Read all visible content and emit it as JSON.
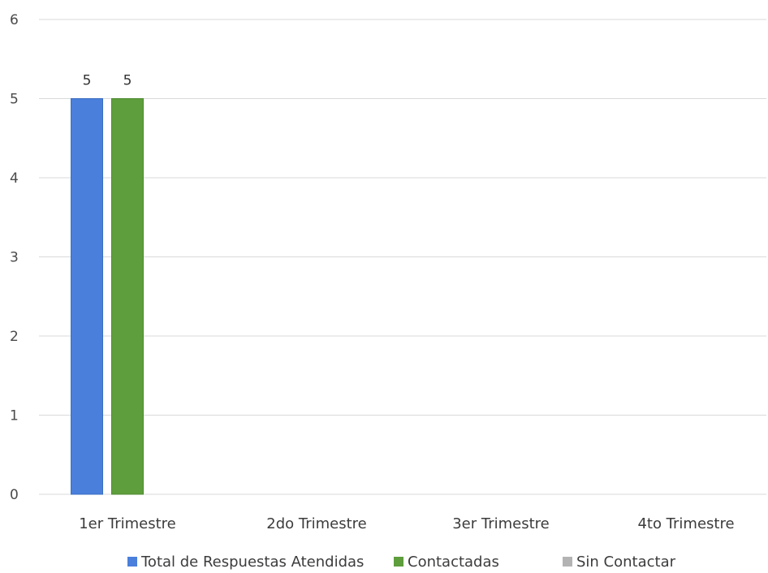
{
  "chart_data": {
    "type": "bar",
    "title": "",
    "xlabel": "",
    "ylabel": "",
    "categories": [
      "1er Trimestre",
      "2do Trimestre",
      "3er Trimestre",
      "4to Trimestre"
    ],
    "series": [
      {
        "name": "Total de Respuestas Atendidas",
        "values": [
          5,
          0,
          0,
          0
        ],
        "color": "#4a7fdc"
      },
      {
        "name": "Contactadas",
        "values": [
          5,
          0,
          0,
          0
        ],
        "color": "#5e9e3c"
      },
      {
        "name": "Sin Contactar",
        "values": [
          0,
          0,
          0,
          0
        ],
        "color": "#b3b3b3"
      }
    ],
    "data_labels": [
      {
        "series": 0,
        "category": 0,
        "text": "5"
      },
      {
        "series": 1,
        "category": 0,
        "text": "5"
      }
    ],
    "yticks": [
      "0",
      "1",
      "2",
      "3",
      "4",
      "5",
      "6"
    ],
    "ylim": [
      0,
      6
    ],
    "grid": true,
    "legend_position": "bottom"
  }
}
